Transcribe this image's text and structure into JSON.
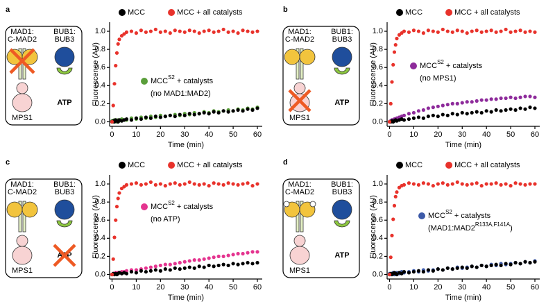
{
  "chart_data": [
    {
      "type": "scatter",
      "panel_label": "a",
      "diagram_labels": {
        "mad1": "MAD1:",
        "cmad2": "C-MAD2",
        "bub1": "BUB1:",
        "bub3": "BUB3",
        "mps1": "MPS1",
        "atp": "ATP"
      },
      "xlabel": "Time (min)",
      "ylabel": "Fluorescence (AU)",
      "xlim": [
        -1,
        62
      ],
      "ylim": [
        -0.05,
        1.1
      ],
      "xticks": [
        0,
        10,
        20,
        30,
        40,
        50,
        60
      ],
      "yticks": [
        {
          "value": 0,
          "label": "0.0"
        },
        {
          "value": 0.2,
          "label": "0.2"
        },
        {
          "value": 0.4,
          "label": "0.4"
        },
        {
          "value": 0.6,
          "label": "0.6"
        },
        {
          "value": 0.8,
          "label": "0.8"
        },
        {
          "value": 1,
          "label": "1.0"
        }
      ],
      "x": [
        0,
        0.5,
        1,
        1.5,
        2,
        2.5,
        3,
        4,
        5,
        6,
        8,
        10,
        12,
        14,
        16,
        18,
        20,
        22,
        24,
        26,
        28,
        30,
        32,
        34,
        36,
        38,
        40,
        42,
        44,
        46,
        48,
        50,
        52,
        54,
        56,
        58,
        60
      ],
      "series": [
        {
          "name": "MCC",
          "color": "#000000",
          "values": [
            0.0,
            0.01,
            0.0,
            0.02,
            0.01,
            0.0,
            0.02,
            0.01,
            0.02,
            0.03,
            0.02,
            0.04,
            0.03,
            0.05,
            0.04,
            0.06,
            0.05,
            0.06,
            0.07,
            0.06,
            0.08,
            0.07,
            0.09,
            0.08,
            0.09,
            0.1,
            0.09,
            0.11,
            0.1,
            0.12,
            0.11,
            0.12,
            0.13,
            0.12,
            0.14,
            0.13,
            0.15
          ]
        },
        {
          "name": "MCC + all catalysts",
          "color": "#e8322b",
          "values": [
            0.0,
            0.18,
            0.42,
            0.62,
            0.76,
            0.86,
            0.91,
            0.95,
            0.97,
            0.99,
            1.0,
            0.98,
            1.01,
            0.99,
            1.0,
            1.02,
            0.99,
            1.0,
            0.98,
            1.01,
            1.0,
            0.99,
            1.01,
            1.0,
            0.98,
            1.0,
            1.01,
            0.99,
            1.0,
            1.02,
            0.99,
            1.0,
            0.98,
            1.01,
            1.0,
            0.99,
            1.0
          ]
        },
        {
          "color": "#5a9e3a",
          "values": [
            0.01,
            0.0,
            0.02,
            0.01,
            0.0,
            0.02,
            0.01,
            0.03,
            0.02,
            0.02,
            0.04,
            0.03,
            0.05,
            0.04,
            0.06,
            0.05,
            0.07,
            0.06,
            0.07,
            0.08,
            0.07,
            0.09,
            0.08,
            0.1,
            0.09,
            0.11,
            0.1,
            0.12,
            0.11,
            0.12,
            0.13,
            0.12,
            0.14,
            0.13,
            0.15,
            0.14,
            0.16
          ]
        }
      ],
      "annotation": {
        "text": "MCC",
        "sup": "S2",
        "after": " + catalysts",
        "line2": "(no MAD1:MAD2)"
      }
    },
    {
      "type": "scatter",
      "panel_label": "b",
      "diagram_labels": {
        "mad1": "MAD1:",
        "cmad2": "C-MAD2",
        "bub1": "BUB1:",
        "bub3": "BUB3",
        "mps1": "MPS1",
        "atp": "ATP"
      },
      "xlabel": "Time (min)",
      "ylabel": "Fluorescence (AU)",
      "xlim": [
        -1,
        62
      ],
      "ylim": [
        -0.05,
        1.1
      ],
      "xticks": [
        0,
        10,
        20,
        30,
        40,
        50,
        60
      ],
      "yticks": [
        {
          "value": 0,
          "label": "0.0"
        },
        {
          "value": 0.2,
          "label": "0.2"
        },
        {
          "value": 0.4,
          "label": "0.4"
        },
        {
          "value": 0.6,
          "label": "0.6"
        },
        {
          "value": 0.8,
          "label": "0.8"
        },
        {
          "value": 1,
          "label": "1.0"
        }
      ],
      "x": [
        0,
        0.5,
        1,
        1.5,
        2,
        2.5,
        3,
        4,
        5,
        6,
        8,
        10,
        12,
        14,
        16,
        18,
        20,
        22,
        24,
        26,
        28,
        30,
        32,
        34,
        36,
        38,
        40,
        42,
        44,
        46,
        48,
        50,
        52,
        54,
        56,
        58,
        60
      ],
      "series": [
        {
          "name": "MCC",
          "color": "#000000",
          "values": [
            0.0,
            0.0,
            0.01,
            0.0,
            0.01,
            0.02,
            0.01,
            0.02,
            0.03,
            0.02,
            0.03,
            0.04,
            0.05,
            0.04,
            0.06,
            0.07,
            0.06,
            0.08,
            0.07,
            0.09,
            0.08,
            0.1,
            0.09,
            0.1,
            0.11,
            0.1,
            0.12,
            0.11,
            0.13,
            0.12,
            0.13,
            0.14,
            0.13,
            0.15,
            0.14,
            0.16,
            0.15
          ]
        },
        {
          "name": "MCC + all catalysts",
          "color": "#e8322b",
          "values": [
            0.0,
            0.2,
            0.44,
            0.63,
            0.77,
            0.85,
            0.92,
            0.96,
            0.98,
            1.0,
            0.99,
            1.01,
            1.0,
            0.98,
            1.01,
            1.0,
            0.99,
            1.02,
            1.0,
            0.99,
            1.01,
            1.0,
            0.98,
            1.0,
            1.01,
            0.99,
            1.0,
            1.01,
            0.99,
            1.0,
            1.02,
            0.99,
            1.0,
            1.01,
            0.99,
            1.0,
            0.99
          ]
        },
        {
          "color": "#8e2b9b",
          "values": [
            0.0,
            0.01,
            0.02,
            0.02,
            0.03,
            0.03,
            0.04,
            0.05,
            0.06,
            0.07,
            0.09,
            0.1,
            0.12,
            0.13,
            0.15,
            0.16,
            0.17,
            0.18,
            0.19,
            0.2,
            0.2,
            0.21,
            0.22,
            0.22,
            0.23,
            0.24,
            0.24,
            0.25,
            0.25,
            0.26,
            0.26,
            0.27,
            0.26,
            0.27,
            0.28,
            0.28,
            0.27
          ]
        }
      ],
      "annotation": {
        "text": "MCC",
        "sup": "S2",
        "after": " + catalysts",
        "line2": "(no MPS1)"
      }
    },
    {
      "type": "scatter",
      "panel_label": "c",
      "diagram_labels": {
        "mad1": "MAD1:",
        "cmad2": "C-MAD2",
        "bub1": "BUB1:",
        "bub3": "BUB3",
        "mps1": "MPS1",
        "atp": "ATP"
      },
      "xlabel": "Time (min)",
      "ylabel": "Fluorescence (AU)",
      "xlim": [
        -1,
        62
      ],
      "ylim": [
        -0.05,
        1.1
      ],
      "xticks": [
        0,
        10,
        20,
        30,
        40,
        50,
        60
      ],
      "yticks": [
        {
          "value": 0,
          "label": "0.0"
        },
        {
          "value": 0.2,
          "label": "0.2"
        },
        {
          "value": 0.4,
          "label": "0.4"
        },
        {
          "value": 0.6,
          "label": "0.6"
        },
        {
          "value": 0.8,
          "label": "0.8"
        },
        {
          "value": 1,
          "label": "1.0"
        }
      ],
      "x": [
        0,
        0.5,
        1,
        1.5,
        2,
        2.5,
        3,
        4,
        5,
        6,
        8,
        10,
        12,
        14,
        16,
        18,
        20,
        22,
        24,
        26,
        28,
        30,
        32,
        34,
        36,
        38,
        40,
        42,
        44,
        46,
        48,
        50,
        52,
        54,
        56,
        58,
        60
      ],
      "series": [
        {
          "name": "MCC",
          "color": "#000000",
          "values": [
            0.0,
            0.01,
            0.0,
            0.01,
            0.0,
            0.01,
            0.02,
            0.01,
            0.02,
            0.01,
            0.03,
            0.02,
            0.04,
            0.03,
            0.04,
            0.05,
            0.04,
            0.06,
            0.05,
            0.07,
            0.06,
            0.07,
            0.08,
            0.07,
            0.09,
            0.08,
            0.1,
            0.09,
            0.1,
            0.11,
            0.1,
            0.12,
            0.11,
            0.12,
            0.13,
            0.12,
            0.13
          ]
        },
        {
          "name": "MCC + all catalysts",
          "color": "#e8322b",
          "values": [
            0.0,
            0.17,
            0.41,
            0.6,
            0.75,
            0.84,
            0.9,
            0.95,
            0.97,
            0.99,
            1.0,
            1.01,
            0.99,
            1.0,
            1.02,
            0.99,
            1.0,
            0.98,
            1.0,
            1.01,
            0.99,
            1.0,
            1.02,
            1.0,
            0.99,
            1.0,
            0.98,
            1.01,
            1.0,
            0.99,
            1.01,
            1.0,
            0.99,
            1.0,
            1.01,
            0.98,
            1.0
          ]
        },
        {
          "color": "#e4348f",
          "values": [
            0.0,
            0.01,
            0.0,
            0.02,
            0.01,
            0.02,
            0.02,
            0.03,
            0.03,
            0.04,
            0.05,
            0.05,
            0.06,
            0.07,
            0.08,
            0.09,
            0.1,
            0.11,
            0.11,
            0.12,
            0.13,
            0.14,
            0.15,
            0.16,
            0.16,
            0.17,
            0.18,
            0.19,
            0.2,
            0.2,
            0.21,
            0.22,
            0.23,
            0.23,
            0.24,
            0.25,
            0.25
          ]
        }
      ],
      "annotation": {
        "text": "MCC",
        "sup": "S2",
        "after": " + catalysts",
        "line2": "(no ATP)"
      }
    },
    {
      "type": "scatter",
      "panel_label": "d",
      "diagram_labels": {
        "mad1": "MAD1:",
        "cmad2": "C-MAD2",
        "bub1": "BUB1:",
        "bub3": "BUB3",
        "mps1": "MPS1",
        "atp": "ATP"
      },
      "xlabel": "Time (min)",
      "ylabel": "Fluorescence (AU)",
      "xlim": [
        -1,
        62
      ],
      "ylim": [
        -0.05,
        1.1
      ],
      "xticks": [
        0,
        10,
        20,
        30,
        40,
        50,
        60
      ],
      "yticks": [
        {
          "value": 0,
          "label": "0.0"
        },
        {
          "value": 0.2,
          "label": "0.2"
        },
        {
          "value": 0.4,
          "label": "0.4"
        },
        {
          "value": 0.6,
          "label": "0.6"
        },
        {
          "value": 0.8,
          "label": "0.8"
        },
        {
          "value": 1,
          "label": "1.0"
        }
      ],
      "x": [
        0,
        0.5,
        1,
        1.5,
        2,
        2.5,
        3,
        4,
        5,
        6,
        8,
        10,
        12,
        14,
        16,
        18,
        20,
        22,
        24,
        26,
        28,
        30,
        32,
        34,
        36,
        38,
        40,
        42,
        44,
        46,
        48,
        50,
        52,
        54,
        56,
        58,
        60
      ],
      "series": [
        {
          "name": "MCC",
          "color": "#000000",
          "values": [
            0.0,
            0.01,
            0.0,
            0.01,
            0.02,
            0.01,
            0.0,
            0.02,
            0.01,
            0.03,
            0.02,
            0.03,
            0.04,
            0.03,
            0.05,
            0.04,
            0.06,
            0.05,
            0.07,
            0.06,
            0.07,
            0.08,
            0.07,
            0.09,
            0.08,
            0.1,
            0.09,
            0.1,
            0.11,
            0.1,
            0.12,
            0.11,
            0.13,
            0.12,
            0.14,
            0.13,
            0.14
          ]
        },
        {
          "name": "MCC + all catalysts",
          "color": "#e8322b",
          "values": [
            0.0,
            0.19,
            0.43,
            0.61,
            0.76,
            0.86,
            0.91,
            0.96,
            0.98,
            0.99,
            1.01,
            1.0,
            0.99,
            1.01,
            1.0,
            0.98,
            1.0,
            1.01,
            0.99,
            1.0,
            1.02,
            1.0,
            0.99,
            1.0,
            1.01,
            0.98,
            1.0,
            1.0,
            1.01,
            0.99,
            1.0,
            0.98,
            1.01,
            1.0,
            0.99,
            1.0,
            1.0
          ]
        },
        {
          "color": "#3d5aa8",
          "values": [
            0.01,
            0.0,
            0.01,
            0.02,
            0.0,
            0.01,
            0.02,
            0.01,
            0.03,
            0.02,
            0.03,
            0.04,
            0.03,
            0.05,
            0.04,
            0.05,
            0.06,
            0.05,
            0.07,
            0.06,
            0.08,
            0.07,
            0.08,
            0.09,
            0.08,
            0.1,
            0.09,
            0.11,
            0.1,
            0.12,
            0.11,
            0.12,
            0.13,
            0.12,
            0.14,
            0.13,
            0.15
          ]
        }
      ],
      "annotation": {
        "text": "MCC",
        "sup": "S2",
        "after": " + catalysts",
        "line2": "(MAD1:MAD2",
        "line2_sup": "R133A,F141A",
        "line2_after": ")"
      }
    }
  ]
}
